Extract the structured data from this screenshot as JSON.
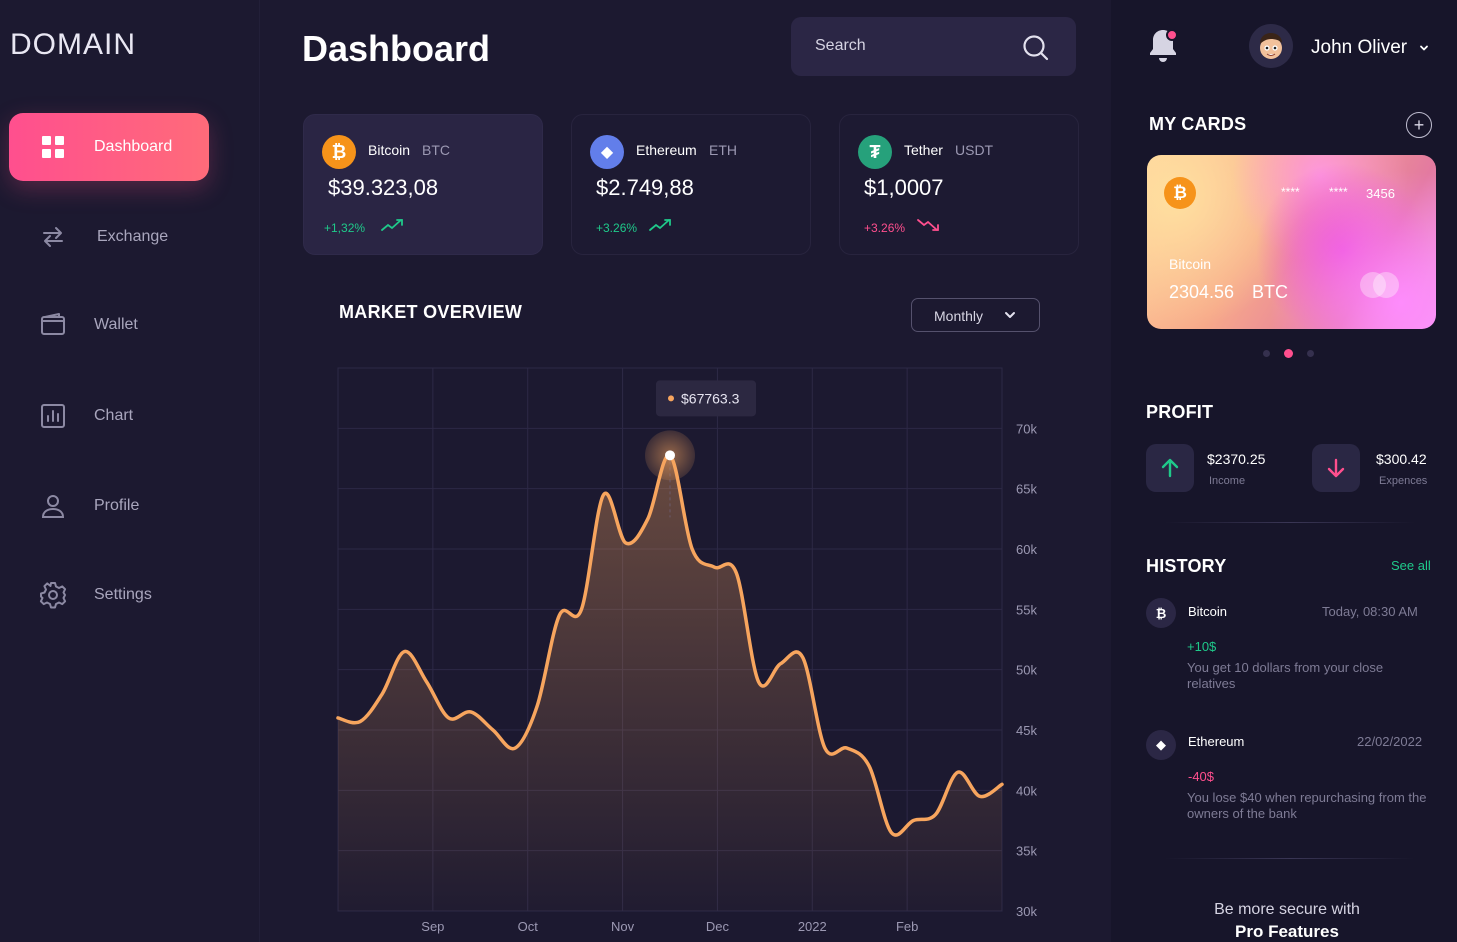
{
  "brand": {
    "logo": "DOMAIN"
  },
  "sidebar": {
    "items": [
      {
        "label": "Dashboard",
        "icon": "grid-icon",
        "active": true
      },
      {
        "label": "Exchange",
        "icon": "exchange-icon"
      },
      {
        "label": "Wallet",
        "icon": "wallet-icon"
      },
      {
        "label": "Chart",
        "icon": "bar-chart-icon"
      },
      {
        "label": "Profile",
        "icon": "user-icon"
      },
      {
        "label": "Settings",
        "icon": "gear-icon"
      }
    ]
  },
  "header": {
    "title": "Dashboard",
    "search_placeholder": "Search",
    "user_name": "John Oliver"
  },
  "coins": [
    {
      "name": "Bitcoin",
      "symbol": "BTC",
      "price": "$39.323,08",
      "change": "+1,32%",
      "trend": "up",
      "color": "#f6931a",
      "glyph": "₿"
    },
    {
      "name": "Ethereum",
      "symbol": "ETH",
      "price": "$2.749,88",
      "change": "+3.26%",
      "trend": "up",
      "color": "#627eea",
      "glyph": "◆"
    },
    {
      "name": "Tether",
      "symbol": "USDT",
      "price": "$1,0007",
      "change": "+3.26%",
      "trend": "down",
      "color": "#26a17b",
      "glyph": "₮"
    }
  ],
  "market": {
    "title": "MARKET OVERVIEW",
    "period": "Monthly"
  },
  "chart_data": {
    "type": "area",
    "title": "MARKET OVERVIEW",
    "xlabels": [
      "Sep",
      "Oct",
      "Nov",
      "Dec",
      "2022",
      "Feb"
    ],
    "y_ticks": [
      "70k",
      "65k",
      "60k",
      "55k",
      "50k",
      "45k",
      "40k",
      "35k",
      "30k"
    ],
    "ylim": [
      30000,
      75000
    ],
    "series": [
      {
        "values": [
          46000,
          45700,
          48000,
          51500,
          49000,
          46000,
          46500,
          45000,
          43500,
          47000,
          54500,
          55000,
          64500,
          60500,
          62500,
          67763.3,
          60000,
          58500,
          58000,
          49000,
          50500,
          51000,
          43500,
          43500,
          42000,
          36500,
          37500,
          38000,
          41500,
          39500,
          40500
        ],
        "color": "#f7a55e"
      }
    ],
    "tooltip": {
      "label": "$67763.3",
      "index": 15
    },
    "grid": true,
    "colors": {
      "line": "#f7a55e",
      "grid": "#2d2946"
    }
  },
  "right": {
    "my_cards_title": "MY CARDS",
    "card": {
      "mask1": "****",
      "mask2": "****",
      "last4": "3456",
      "name": "Bitcoin",
      "amount": "2304.56",
      "unit": "BTC"
    },
    "profit_title": "PROFIT",
    "income": {
      "value": "$2370.25",
      "label": "Income"
    },
    "expense": {
      "value": "$300.42",
      "label": "Expences"
    },
    "history_title": "HISTORY",
    "see_all": "See all",
    "history": [
      {
        "name": "Bitcoin",
        "date": "Today, 08:30 AM",
        "amount": "+10$",
        "desc": "You get 10 dollars from your close relatives",
        "color": "#1fc98a",
        "glyph": "₿"
      },
      {
        "name": "Ethereum",
        "date": "22/02/2022",
        "amount": "-40$",
        "desc": "You lose $40 when repurchasing from the owners of the bank",
        "color": "#ff4f8e",
        "glyph": "◆"
      }
    ],
    "promo_line1": "Be more secure with",
    "promo_line2": "Pro Features"
  }
}
